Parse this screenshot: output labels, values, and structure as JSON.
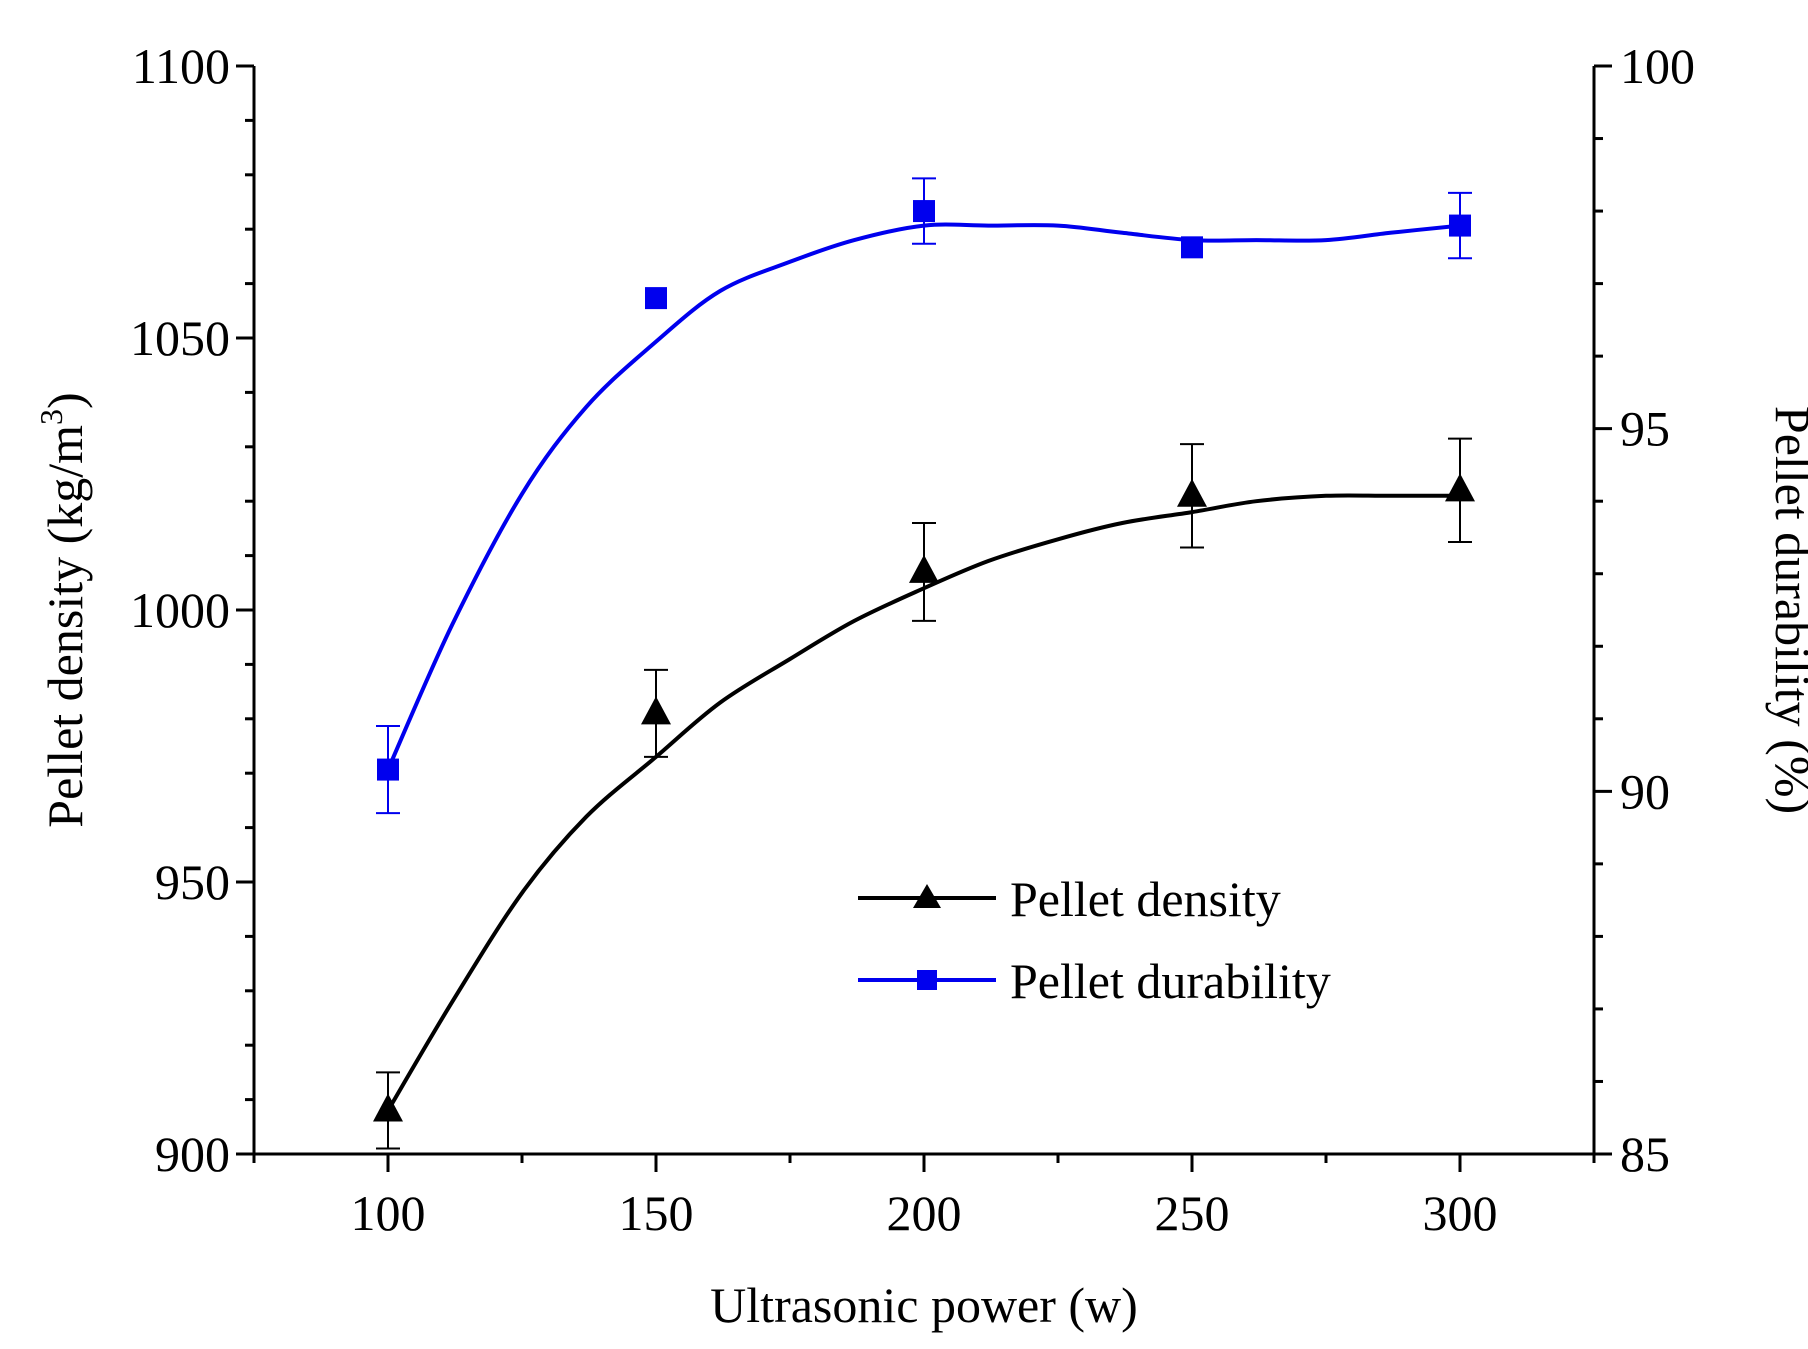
{
  "chart_data": {
    "type": "line",
    "title": "",
    "xlabel": "Ultrasonic power (w)",
    "ylabel_left": "Pellet density (kg/m",
    "ylabel_left_sup": "3",
    "ylabel_left_end": ")",
    "ylabel_right": "Pellet durability (%)",
    "xlim": [
      75,
      325
    ],
    "ylim_left": [
      900,
      1100
    ],
    "ylim_right": [
      85,
      100
    ],
    "x_ticks": [
      100,
      150,
      200,
      250,
      300
    ],
    "y_left_ticks": [
      900,
      950,
      1000,
      1050,
      1100
    ],
    "y_right_ticks": [
      85,
      90,
      95,
      100
    ],
    "grid": false,
    "legend_position": "lower-right",
    "series": [
      {
        "name": "Pellet density",
        "axis": "left",
        "marker": "triangle",
        "color": "#000000",
        "x": [
          100,
          150,
          200,
          250,
          300
        ],
        "y": [
          908,
          981,
          1007,
          1021,
          1022
        ],
        "err": [
          7,
          8,
          9,
          9.5,
          9.5
        ],
        "fit_x": [
          100,
          112,
          125,
          137,
          150,
          162,
          175,
          187,
          200,
          212,
          225,
          237,
          250,
          262,
          275,
          287,
          300
        ],
        "fit_y": [
          908,
          928,
          948,
          962,
          973,
          983,
          991,
          998,
          1004,
          1009,
          1013,
          1016,
          1018,
          1020,
          1021,
          1021,
          1021
        ]
      },
      {
        "name": "Pellet durability",
        "axis": "right",
        "marker": "square",
        "color": "#0000ee",
        "x": [
          100,
          150,
          200,
          250,
          300
        ],
        "y": [
          90.3,
          96.8,
          98.0,
          97.5,
          97.8
        ],
        "err": [
          0.6,
          0,
          0.45,
          0,
          0.45
        ],
        "fit_x": [
          100,
          112,
          125,
          137,
          150,
          162,
          175,
          187,
          200,
          212,
          225,
          237,
          250,
          262,
          275,
          287,
          300
        ],
        "fit_y": [
          90.3,
          92.3,
          94.1,
          95.3,
          96.2,
          96.9,
          97.3,
          97.6,
          97.8,
          97.8,
          97.8,
          97.7,
          97.6,
          97.6,
          97.6,
          97.7,
          97.8
        ]
      }
    ]
  }
}
